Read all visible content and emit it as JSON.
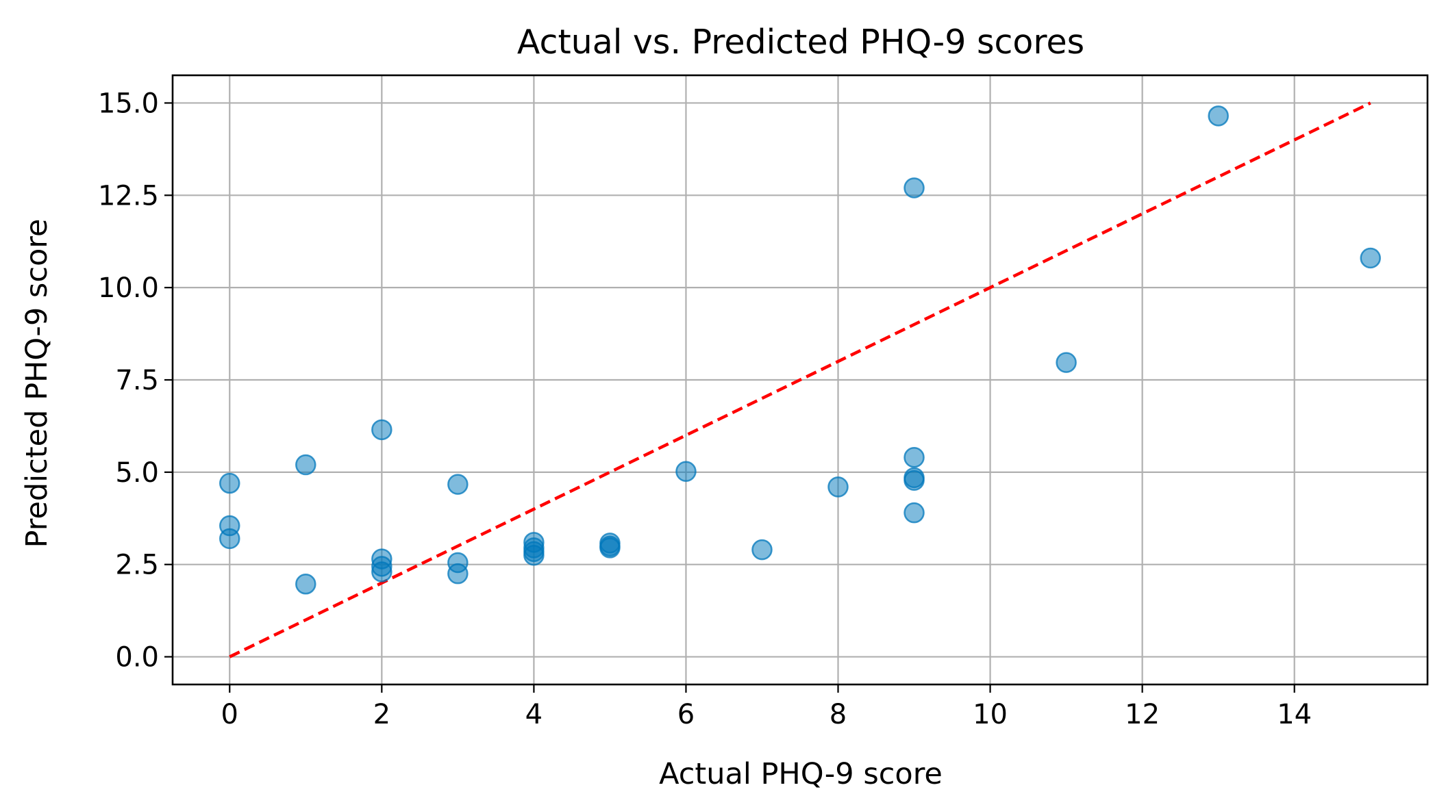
{
  "chart_data": {
    "type": "scatter",
    "title": "Actual vs. Predicted PHQ-9 scores",
    "xlabel": "Actual PHQ-9 score",
    "ylabel": "Predicted PHQ-9 score",
    "xlim": [
      -0.75,
      15.75
    ],
    "ylim": [
      -0.75,
      15.75
    ],
    "xticks": [
      0,
      2,
      4,
      6,
      8,
      10,
      12,
      14
    ],
    "xtick_labels": [
      "0",
      "2",
      "4",
      "6",
      "8",
      "10",
      "12",
      "14"
    ],
    "yticks": [
      0.0,
      2.5,
      5.0,
      7.5,
      10.0,
      12.5,
      15.0
    ],
    "ytick_labels": [
      "0.0",
      "2.5",
      "5.0",
      "7.5",
      "10.0",
      "12.5",
      "15.0"
    ],
    "grid": true,
    "colors": {
      "point_fill": "#0077bb",
      "point_edge": "#0077bb",
      "reference_line": "#ff0000",
      "grid": "#b0b0b0"
    },
    "point_alpha": 0.5,
    "reference_line": {
      "style": "dashed",
      "x": [
        0,
        15
      ],
      "y": [
        0,
        15
      ]
    },
    "series": [
      {
        "x": [
          0,
          0,
          0,
          1,
          1,
          2,
          2,
          2,
          2,
          3,
          3,
          3,
          4,
          4,
          4,
          4,
          5,
          5,
          5,
          6,
          7,
          8,
          9,
          9,
          9,
          9,
          9,
          11,
          13,
          15
        ],
        "y": [
          4.7,
          3.55,
          3.2,
          5.2,
          1.97,
          6.15,
          2.65,
          2.45,
          2.3,
          4.67,
          2.55,
          2.25,
          3.1,
          2.95,
          2.85,
          2.75,
          3.08,
          3.0,
          2.95,
          5.02,
          2.9,
          4.6,
          12.7,
          5.4,
          4.85,
          4.78,
          3.9,
          7.97,
          14.65,
          10.8
        ]
      }
    ]
  }
}
